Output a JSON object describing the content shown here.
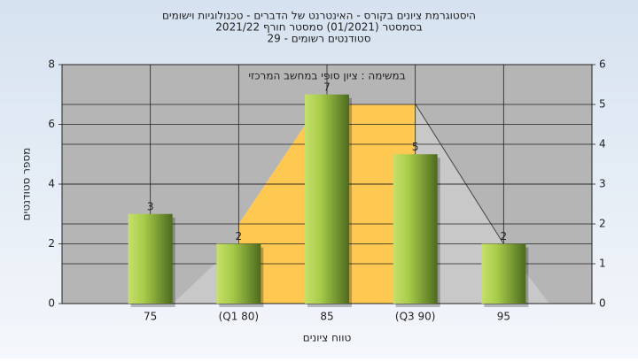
{
  "chart_data": {
    "type": "bar",
    "title_lines": [
      "היסטוגרמת ציונים בקורס - האינטרנט של הדברים - טכנולוגיות וישומים",
      "בסמסטר  (01/2021)  סמסטר חורף 2021/22",
      "סטודנטים רשומים - 29"
    ],
    "annotation": "במשימה : ציון סופי במחשב המרכזי",
    "x_label": "טווח ציונים",
    "y_label": "מספר סטודנטים",
    "categories": [
      "75",
      "(Q1 80)",
      "85",
      "(Q3 90)",
      "95"
    ],
    "values": [
      3,
      2,
      7,
      5,
      2
    ],
    "ylim": [
      0,
      8
    ],
    "yticks": [
      0,
      2,
      4,
      6,
      8
    ],
    "y2lim": [
      0,
      6
    ],
    "y2ticks": [
      0,
      1,
      2,
      3,
      4,
      5,
      6
    ],
    "grid": true
  }
}
